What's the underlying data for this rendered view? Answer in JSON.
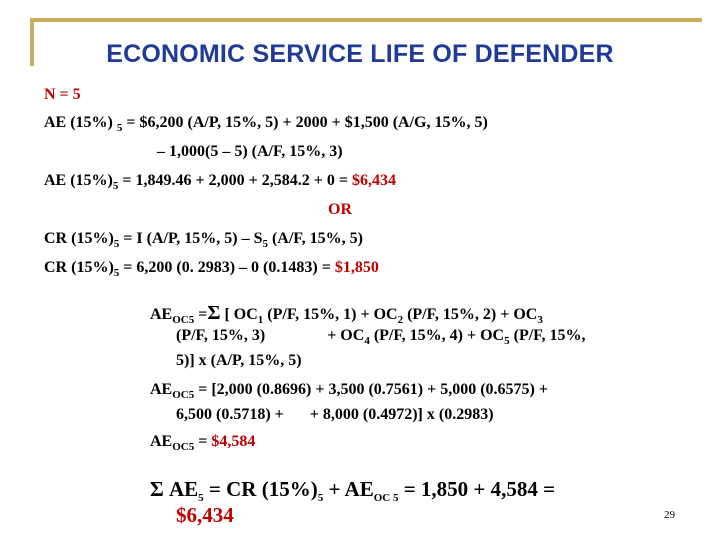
{
  "slide": {
    "title": "ECONOMIC SERVICE LIFE OF DEFENDER",
    "page_number": "29",
    "accent_color": "#c9ad5f",
    "title_color": "#1f3a9a",
    "highlight_color": "#c00000"
  },
  "lines": {
    "n": "N = 5",
    "ae1": {
      "pre": "AE (15%) ",
      "sub": "5",
      "post": " = $6,200 (A/P, 15%, 5) + 2000 + $1,500 (A/G, 15%, 5)"
    },
    "ae1_cont": "– 1,000(5 – 5) (A/F, 15%, 3)",
    "ae2": {
      "pre": "AE (15%)",
      "sub": "5",
      "mid": " = 1,849.46 + 2,000 + 2,584.2 + 0 = ",
      "result": "$6,434"
    },
    "or": "OR",
    "cr1": {
      "pre": "CR (15%)",
      "sub": "5",
      "mid": " = I (A/P, 15%, 5) – S",
      "sub2": "5",
      "post": " (A/F, 15%, 5)"
    },
    "cr2": {
      "pre": "CR (15%)",
      "sub": "5",
      "mid": " = 6,200 (0. 2983) – 0 (0.1483) = ",
      "result": "$1,850"
    },
    "aeoc1": {
      "pre": "AE",
      "sub": "OC5",
      "eq": " =",
      "sigma": "Σ",
      "t1": " [ OC",
      "s1": "1",
      "t2": " (P/F, 15%, 1) + OC",
      "s2": "2",
      "t3": " (P/F, 15%, 2) + OC",
      "s3": "3"
    },
    "aeoc1_cont1": {
      "t1": "(P/F, 15%, 3)",
      "t2": "+ OC",
      "s1": "4",
      "t3": " (P/F, 15%, 4) + OC",
      "s2": "5",
      "t4": " (P/F, 15%,"
    },
    "aeoc1_cont2": "5)] x (A/P, 15%, 5)",
    "aeoc2": {
      "pre": "AE",
      "sub": "OC5",
      "post": " = [2,000 (0.8696) + 3,500 (0.7561) + 5,000 (0.6575) +"
    },
    "aeoc2_cont": {
      "t1": "6,500 (0.5718) +",
      "t2": "+ 8,000 (0.4972)] x (0.2983)"
    },
    "aeoc3": {
      "pre": "AE",
      "sub": "OC5",
      "mid": " = ",
      "result": "$4,584"
    },
    "final": {
      "sigma": "Σ",
      "t1": " AE",
      "s1": "5",
      "t2": " = CR (15%)",
      "s2": "5",
      "t3": " + AE",
      "s3": "OC 5",
      "t4": " = 1,850 + 4,584 =",
      "result": "$6,434"
    }
  }
}
